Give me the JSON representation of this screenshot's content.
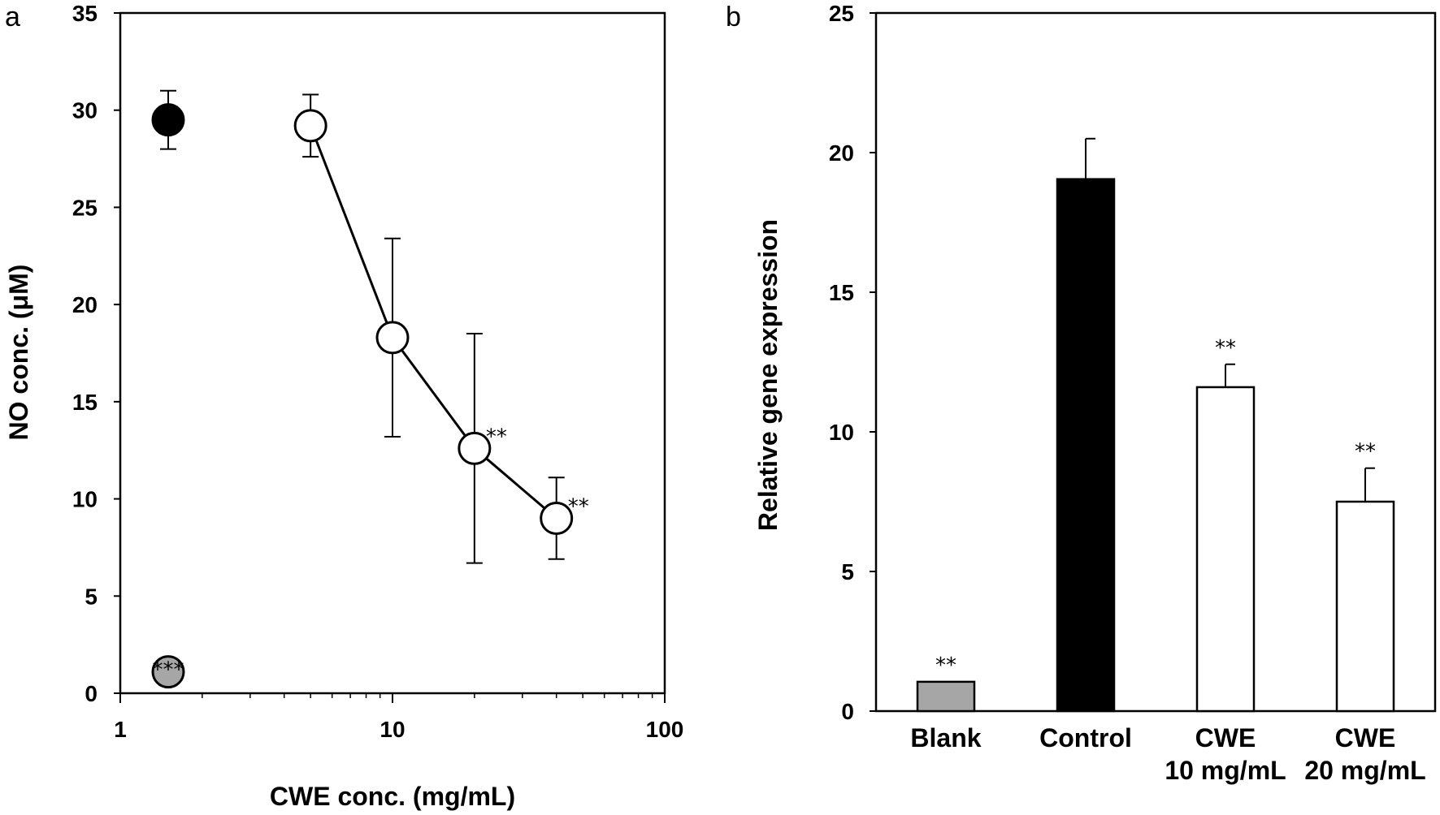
{
  "panels": {
    "a": "a",
    "b": "b"
  },
  "colors": {
    "control": "#000000",
    "blank": "#a6a6a6",
    "cwe": "#ffffff",
    "line": "#000000"
  },
  "chart_data": [
    {
      "type": "scatter",
      "panel": "a",
      "xlabel": "CWE conc. (mg/mL)",
      "ylabel": "NO conc. (μM)",
      "xscale": "log",
      "xlim": [
        1,
        100
      ],
      "ylim": [
        0,
        35
      ],
      "x_ticks": [
        "1",
        "10",
        "100"
      ],
      "y_ticks": [
        "0",
        "5",
        "10",
        "15",
        "20",
        "25",
        "30",
        "35"
      ],
      "grid": false,
      "series": [
        {
          "marker": "filled-black",
          "points": [
            {
              "x": 1.5,
              "y": 29.5,
              "err": 1.5,
              "label": ""
            }
          ]
        },
        {
          "marker": "filled-gray",
          "points": [
            {
              "x": 1.5,
              "y": 1.1,
              "err": 0,
              "label": "***"
            }
          ]
        },
        {
          "marker": "open-white",
          "line": true,
          "points": [
            {
              "x": 5,
              "y": 29.2,
              "err": 1.6,
              "label": ""
            },
            {
              "x": 10,
              "y": 18.3,
              "err": 5.1,
              "label": ""
            },
            {
              "x": 20,
              "y": 12.6,
              "err": 5.9,
              "label": "**"
            },
            {
              "x": 40,
              "y": 9.0,
              "err": 2.1,
              "label": "**"
            }
          ]
        }
      ]
    },
    {
      "type": "bar",
      "panel": "b",
      "xlabel": "",
      "ylabel": "Relative gene expression",
      "ylim": [
        0,
        25
      ],
      "y_ticks": [
        "0",
        "5",
        "10",
        "15",
        "20",
        "25"
      ],
      "grid": false,
      "categories": [
        [
          "Blank"
        ],
        [
          "Control"
        ],
        [
          "CWE",
          "10 mg/mL"
        ],
        [
          "CWE",
          "20 mg/mL"
        ]
      ],
      "values": [
        1.05,
        19.05,
        11.6,
        7.5
      ],
      "errors": [
        0,
        1.45,
        0.82,
        1.2
      ],
      "bar_colors": [
        "#a6a6a6",
        "#000000",
        "#ffffff",
        "#ffffff"
      ],
      "labels": [
        "**",
        "",
        "**",
        "**"
      ]
    }
  ]
}
